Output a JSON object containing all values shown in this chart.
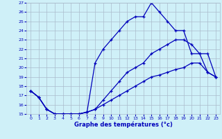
{
  "title": "Graphe des températures (°c)",
  "bg_color": "#cff0f8",
  "grid_color": "#aabbcc",
  "line_color": "#0000bb",
  "xlim": [
    -0.5,
    23.5
  ],
  "ylim": [
    15,
    27
  ],
  "xticks": [
    0,
    1,
    2,
    3,
    4,
    5,
    6,
    7,
    8,
    9,
    10,
    11,
    12,
    13,
    14,
    15,
    16,
    17,
    18,
    19,
    20,
    21,
    22,
    23
  ],
  "yticks": [
    15,
    16,
    17,
    18,
    19,
    20,
    21,
    22,
    23,
    24,
    25,
    26,
    27
  ],
  "line1_x": [
    0,
    1,
    2,
    3,
    4,
    5,
    6,
    7,
    8,
    9,
    10,
    11,
    12,
    13,
    14,
    15,
    16,
    17,
    18,
    19,
    20,
    21,
    22,
    23
  ],
  "line1_y": [
    17.5,
    16.8,
    15.5,
    15.0,
    15.0,
    15.0,
    15.0,
    15.2,
    15.5,
    16.0,
    16.5,
    17.0,
    17.5,
    18.0,
    18.5,
    19.0,
    19.2,
    19.5,
    19.8,
    20.0,
    20.5,
    20.5,
    19.5,
    19.0
  ],
  "line2_x": [
    0,
    1,
    2,
    3,
    4,
    5,
    6,
    7,
    8,
    9,
    10,
    11,
    12,
    13,
    14,
    15,
    16,
    17,
    18,
    19,
    20,
    21,
    22,
    23
  ],
  "line2_y": [
    17.5,
    16.8,
    15.5,
    15.0,
    15.0,
    15.0,
    15.0,
    15.2,
    20.5,
    22.0,
    23.0,
    24.0,
    25.0,
    25.5,
    25.5,
    27.0,
    26.0,
    25.0,
    24.0,
    24.0,
    21.5,
    21.5,
    19.5,
    19.0
  ],
  "line3_x": [
    0,
    1,
    2,
    3,
    4,
    5,
    6,
    7,
    8,
    9,
    10,
    11,
    12,
    13,
    14,
    15,
    16,
    17,
    18,
    19,
    20,
    21,
    22,
    23
  ],
  "line3_y": [
    17.5,
    16.8,
    15.5,
    15.0,
    15.0,
    15.0,
    15.0,
    15.2,
    15.5,
    16.5,
    17.5,
    18.5,
    19.5,
    20.0,
    20.5,
    21.5,
    22.0,
    22.5,
    23.0,
    23.0,
    22.5,
    21.5,
    21.5,
    19.0
  ]
}
